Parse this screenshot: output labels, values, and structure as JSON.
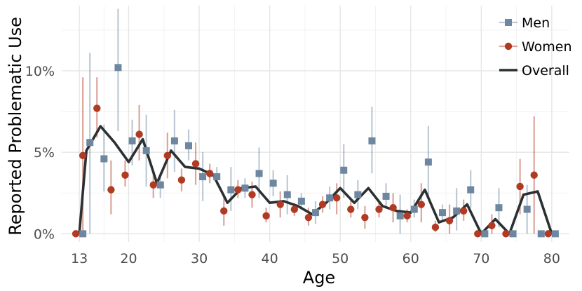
{
  "chart_data": {
    "type": "line",
    "title": "",
    "xlabel": "Age",
    "ylabel": "Reported Problematic Use",
    "xlim": [
      10.5,
      82.5
    ],
    "ylim": [
      -0.5,
      14.0
    ],
    "x_ticks": [
      13,
      20,
      30,
      40,
      50,
      60,
      70,
      80
    ],
    "x_tick_labels": [
      "13",
      "20",
      "30",
      "40",
      "50",
      "60",
      "70",
      "80"
    ],
    "y_ticks": [
      0,
      5,
      10
    ],
    "y_tick_labels": [
      "0%",
      "5%",
      "10%"
    ],
    "grid": true,
    "legend_position": "top-right",
    "series": [
      {
        "name": "Men",
        "marker": "square",
        "color": "#6d87a1",
        "points": [
          {
            "x": 13,
            "y": 0.0,
            "lo": 0.0,
            "hi": 0.0
          },
          {
            "x": 14,
            "y": 5.6,
            "lo": 0.0,
            "hi": 11.1
          },
          {
            "x": 16,
            "y": 4.6,
            "lo": 2.6,
            "hi": 6.7
          },
          {
            "x": 18,
            "y": 10.2,
            "lo": 6.3,
            "hi": 13.8
          },
          {
            "x": 20,
            "y": 5.7,
            "lo": 4.2,
            "hi": 7.0
          },
          {
            "x": 22,
            "y": 5.1,
            "lo": 2.9,
            "hi": 7.3
          },
          {
            "x": 24,
            "y": 3.0,
            "lo": 2.2,
            "hi": 3.8
          },
          {
            "x": 26,
            "y": 5.7,
            "lo": 3.8,
            "hi": 7.6
          },
          {
            "x": 28,
            "y": 5.4,
            "lo": 4.5,
            "hi": 6.4
          },
          {
            "x": 30,
            "y": 3.5,
            "lo": 2.0,
            "hi": 5.0
          },
          {
            "x": 32,
            "y": 3.5,
            "lo": 3.0,
            "hi": 4.1
          },
          {
            "x": 34,
            "y": 2.7,
            "lo": 1.4,
            "hi": 4.1
          },
          {
            "x": 36,
            "y": 2.8,
            "lo": 2.2,
            "hi": 3.4
          },
          {
            "x": 38,
            "y": 3.7,
            "lo": 2.2,
            "hi": 5.3
          },
          {
            "x": 40,
            "y": 3.1,
            "lo": 2.3,
            "hi": 3.9
          },
          {
            "x": 42,
            "y": 2.4,
            "lo": 1.2,
            "hi": 3.6
          },
          {
            "x": 44,
            "y": 2.0,
            "lo": 1.5,
            "hi": 2.5
          },
          {
            "x": 46,
            "y": 1.3,
            "lo": 0.6,
            "hi": 2.0
          },
          {
            "x": 48,
            "y": 2.2,
            "lo": 1.5,
            "hi": 2.9
          },
          {
            "x": 50,
            "y": 3.9,
            "lo": 2.2,
            "hi": 5.5
          },
          {
            "x": 52,
            "y": 2.4,
            "lo": 1.5,
            "hi": 3.3
          },
          {
            "x": 54,
            "y": 5.7,
            "lo": 3.7,
            "hi": 7.8
          },
          {
            "x": 56,
            "y": 2.3,
            "lo": 1.6,
            "hi": 3.1
          },
          {
            "x": 58,
            "y": 1.1,
            "lo": 0.0,
            "hi": 2.4
          },
          {
            "x": 60,
            "y": 1.5,
            "lo": 1.0,
            "hi": 2.1
          },
          {
            "x": 62,
            "y": 4.4,
            "lo": 2.2,
            "hi": 6.6
          },
          {
            "x": 64,
            "y": 1.3,
            "lo": 0.7,
            "hi": 1.8
          },
          {
            "x": 66,
            "y": 1.4,
            "lo": 0.2,
            "hi": 2.8
          },
          {
            "x": 68,
            "y": 2.7,
            "lo": 1.6,
            "hi": 3.9
          },
          {
            "x": 70,
            "y": 0.0,
            "lo": 0.0,
            "hi": 0.0
          },
          {
            "x": 72,
            "y": 1.6,
            "lo": 0.4,
            "hi": 2.8
          },
          {
            "x": 74,
            "y": 0.0,
            "lo": 0.0,
            "hi": 0.0
          },
          {
            "x": 76,
            "y": 1.5,
            "lo": 0.0,
            "hi": 3.0
          },
          {
            "x": 78,
            "y": 0.0,
            "lo": 0.0,
            "hi": 0.0
          },
          {
            "x": 80,
            "y": 0.0,
            "lo": 0.0,
            "hi": 0.0
          }
        ]
      },
      {
        "name": "Women",
        "marker": "circle",
        "color": "#b03a23",
        "points": [
          {
            "x": 13,
            "y": 0.0,
            "lo": 0.0,
            "hi": 0.0
          },
          {
            "x": 14,
            "y": 4.8,
            "lo": 0.0,
            "hi": 9.6
          },
          {
            "x": 16,
            "y": 7.7,
            "lo": 5.9,
            "hi": 9.6
          },
          {
            "x": 18,
            "y": 2.7,
            "lo": 1.2,
            "hi": 4.5
          },
          {
            "x": 20,
            "y": 3.6,
            "lo": 2.9,
            "hi": 4.5
          },
          {
            "x": 22,
            "y": 6.1,
            "lo": 4.5,
            "hi": 7.9
          },
          {
            "x": 24,
            "y": 3.0,
            "lo": 2.2,
            "hi": 3.7
          },
          {
            "x": 26,
            "y": 4.8,
            "lo": 3.4,
            "hi": 6.2
          },
          {
            "x": 28,
            "y": 3.3,
            "lo": 2.6,
            "hi": 4.0
          },
          {
            "x": 30,
            "y": 4.3,
            "lo": 3.0,
            "hi": 5.6
          },
          {
            "x": 32,
            "y": 3.7,
            "lo": 3.1,
            "hi": 4.3
          },
          {
            "x": 34,
            "y": 1.4,
            "lo": 0.5,
            "hi": 2.3
          },
          {
            "x": 36,
            "y": 2.7,
            "lo": 2.2,
            "hi": 3.3
          },
          {
            "x": 38,
            "y": 2.4,
            "lo": 1.6,
            "hi": 3.2
          },
          {
            "x": 40,
            "y": 1.1,
            "lo": 0.7,
            "hi": 1.6
          },
          {
            "x": 42,
            "y": 1.8,
            "lo": 1.0,
            "hi": 2.6
          },
          {
            "x": 44,
            "y": 1.5,
            "lo": 1.1,
            "hi": 1.9
          },
          {
            "x": 46,
            "y": 1.0,
            "lo": 0.5,
            "hi": 1.6
          },
          {
            "x": 48,
            "y": 1.8,
            "lo": 1.3,
            "hi": 2.3
          },
          {
            "x": 50,
            "y": 2.2,
            "lo": 1.2,
            "hi": 3.1
          },
          {
            "x": 52,
            "y": 1.5,
            "lo": 1.0,
            "hi": 2.1
          },
          {
            "x": 54,
            "y": 1.0,
            "lo": 0.3,
            "hi": 1.7
          },
          {
            "x": 56,
            "y": 1.5,
            "lo": 1.0,
            "hi": 1.9
          },
          {
            "x": 58,
            "y": 1.6,
            "lo": 0.7,
            "hi": 2.5
          },
          {
            "x": 60,
            "y": 1.1,
            "lo": 0.7,
            "hi": 1.5
          },
          {
            "x": 62,
            "y": 1.8,
            "lo": 0.7,
            "hi": 3.1
          },
          {
            "x": 64,
            "y": 0.4,
            "lo": 0.1,
            "hi": 0.8
          },
          {
            "x": 66,
            "y": 0.8,
            "lo": 0.0,
            "hi": 1.8
          },
          {
            "x": 68,
            "y": 1.4,
            "lo": 0.8,
            "hi": 2.1
          },
          {
            "x": 70,
            "y": 0.0,
            "lo": 0.0,
            "hi": 0.0
          },
          {
            "x": 72,
            "y": 0.5,
            "lo": 0.0,
            "hi": 1.2
          },
          {
            "x": 74,
            "y": 0.0,
            "lo": 0.0,
            "hi": 0.0
          },
          {
            "x": 76,
            "y": 2.9,
            "lo": 1.2,
            "hi": 4.6
          },
          {
            "x": 78,
            "y": 3.6,
            "lo": 0.0,
            "hi": 7.2
          },
          {
            "x": 80,
            "y": 0.0,
            "lo": 0.0,
            "hi": 0.0
          }
        ]
      },
      {
        "name": "Overall",
        "marker": "line",
        "color": "#2b3033",
        "points": [
          {
            "x": 13,
            "y": 0.0
          },
          {
            "x": 14,
            "y": 5.1
          },
          {
            "x": 16,
            "y": 6.6
          },
          {
            "x": 18,
            "y": 5.6
          },
          {
            "x": 20,
            "y": 4.4
          },
          {
            "x": 22,
            "y": 5.8
          },
          {
            "x": 24,
            "y": 3.1
          },
          {
            "x": 26,
            "y": 5.1
          },
          {
            "x": 28,
            "y": 4.1
          },
          {
            "x": 30,
            "y": 4.0
          },
          {
            "x": 32,
            "y": 3.6
          },
          {
            "x": 34,
            "y": 1.9
          },
          {
            "x": 36,
            "y": 2.8
          },
          {
            "x": 38,
            "y": 2.9
          },
          {
            "x": 40,
            "y": 1.9
          },
          {
            "x": 42,
            "y": 2.0
          },
          {
            "x": 44,
            "y": 1.7
          },
          {
            "x": 46,
            "y": 1.2
          },
          {
            "x": 48,
            "y": 1.9
          },
          {
            "x": 50,
            "y": 2.8
          },
          {
            "x": 52,
            "y": 1.9
          },
          {
            "x": 54,
            "y": 2.8
          },
          {
            "x": 56,
            "y": 1.7
          },
          {
            "x": 58,
            "y": 1.4
          },
          {
            "x": 60,
            "y": 1.3
          },
          {
            "x": 62,
            "y": 2.7
          },
          {
            "x": 64,
            "y": 0.7
          },
          {
            "x": 66,
            "y": 1.0
          },
          {
            "x": 68,
            "y": 1.8
          },
          {
            "x": 70,
            "y": 0.0
          },
          {
            "x": 72,
            "y": 0.9
          },
          {
            "x": 74,
            "y": 0.0
          },
          {
            "x": 76,
            "y": 2.4
          },
          {
            "x": 78,
            "y": 2.6
          },
          {
            "x": 80,
            "y": 0.0
          }
        ]
      }
    ]
  }
}
